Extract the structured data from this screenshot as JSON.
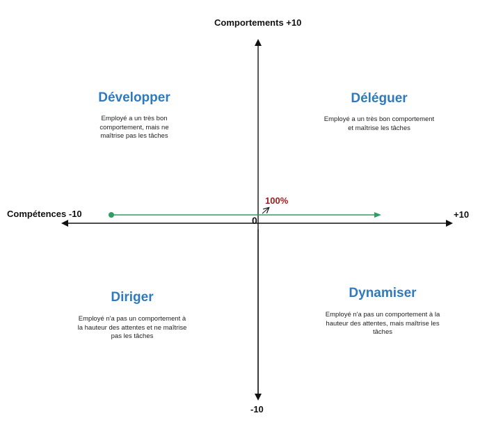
{
  "axes": {
    "top_label": "Comportements +10",
    "bottom_label": "-10",
    "left_label": "Compétences -10",
    "right_label": "+10",
    "origin_label": "0"
  },
  "indicator": {
    "label": "100%",
    "label_color": "#9b1c1c",
    "line_color": "#2e9e62"
  },
  "quadrants": {
    "top_left": {
      "title": "Développer",
      "description": "Employé a un très bon comportement, mais ne maîtrise pas les tâches"
    },
    "top_right": {
      "title": "Déléguer",
      "description": "Employé a un très bon comportement et maîtrise les tâches"
    },
    "bottom_left": {
      "title": "Diriger",
      "description": "Employé n'a pas un comportement à la hauteur des attentes et ne maîtrise pas les tâches"
    },
    "bottom_right": {
      "title": "Dynamiser",
      "description": "Employé n'a pas un comportement à la hauteur des attentes, mais maîtrise les tâches"
    }
  },
  "colors": {
    "title_color": "#2f7abd",
    "axis_color": "#111111"
  }
}
